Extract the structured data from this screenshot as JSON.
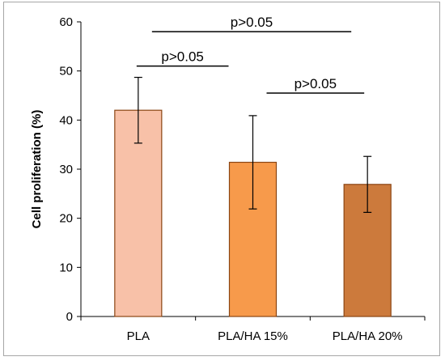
{
  "chart_data": {
    "type": "bar",
    "categories": [
      "PLA",
      "PLA/HA 15%",
      "PLA/HA 20%"
    ],
    "values": [
      42.0,
      31.4,
      26.9
    ],
    "errors": [
      6.7,
      9.5,
      5.7
    ],
    "ylabel": "Cell proliferation (%)",
    "ylim": [
      0,
      60
    ],
    "yticks": [
      0,
      10,
      20,
      30,
      40,
      50,
      60
    ],
    "grid": false,
    "bar_fill_colors": [
      "#f8c1a8",
      "#f79a4b",
      "#cc7a3c"
    ],
    "bar_edge_color": "#8b4513",
    "significance": [
      {
        "label": "p>0.05",
        "from": 0,
        "to": 2,
        "y": 58
      },
      {
        "label": "p>0.05",
        "from": 0,
        "to": 1,
        "y": 51
      },
      {
        "label": "p>0.05",
        "from": 1,
        "to": 2,
        "y": 45.5
      }
    ]
  }
}
